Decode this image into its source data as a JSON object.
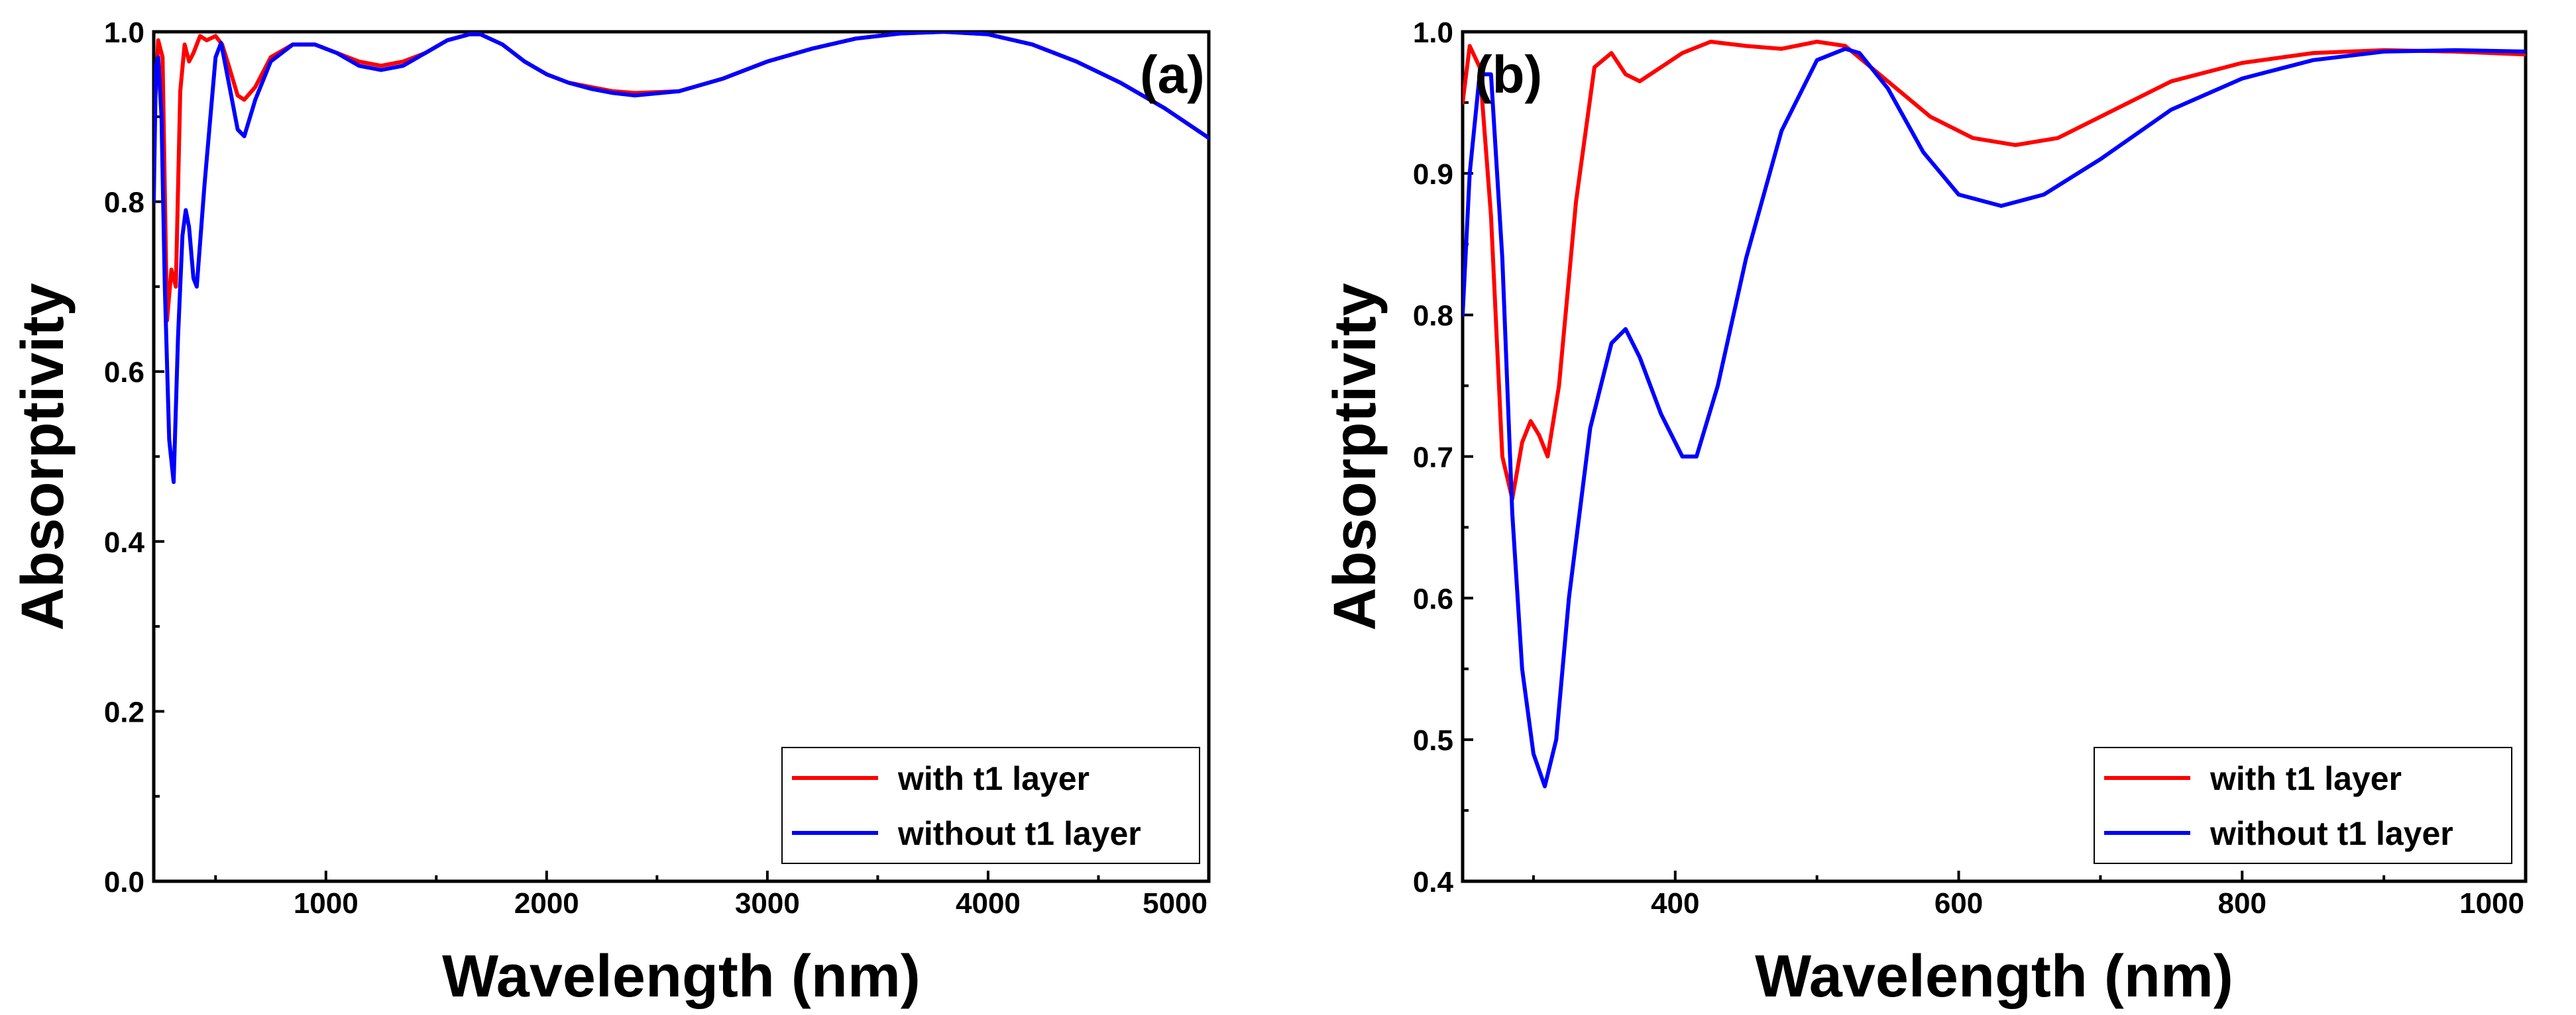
{
  "colors": {
    "with": "#ff0000",
    "without": "#0000ff"
  },
  "chart_data": [
    {
      "type": "line",
      "panel_label": "(a)",
      "xlabel": "Wavelength (nm)",
      "ylabel": "Absorptivity",
      "xlim": [
        220,
        5000
      ],
      "ylim": [
        0.0,
        1.0
      ],
      "xticks": [
        1000,
        2000,
        3000,
        4000,
        5000
      ],
      "xtick_labels": [
        "1000",
        "2000",
        "3000",
        "4000",
        "5000"
      ],
      "yticks": [
        0.0,
        0.2,
        0.4,
        0.6,
        0.8,
        1.0
      ],
      "ytick_labels": [
        "0.0",
        "0.2",
        "0.4",
        "0.6",
        "0.8",
        "1.0"
      ],
      "legend": [
        "with t1 layer",
        "without t1 layer"
      ],
      "legend_position": "bottom-right",
      "series": [
        {
          "name": "with t1 layer",
          "color": "#ff0000",
          "x": [
            220,
            240,
            260,
            280,
            300,
            320,
            340,
            360,
            380,
            400,
            430,
            460,
            500,
            530,
            560,
            600,
            630,
            680,
            750,
            850,
            950,
            1050,
            1150,
            1250,
            1350,
            1450,
            1550,
            1650,
            1700,
            1800,
            1900,
            2000,
            2100,
            2200,
            2300,
            2400,
            2600,
            2800,
            3000,
            3200,
            3400,
            3600,
            3800,
            4000,
            4200,
            4400,
            4600,
            4800,
            5000
          ],
          "y": [
            0.88,
            0.99,
            0.97,
            0.66,
            0.72,
            0.7,
            0.93,
            0.985,
            0.965,
            0.975,
            0.995,
            0.99,
            0.995,
            0.985,
            0.96,
            0.925,
            0.92,
            0.935,
            0.97,
            0.985,
            0.985,
            0.975,
            0.965,
            0.96,
            0.965,
            0.975,
            0.99,
            0.997,
            0.997,
            0.985,
            0.965,
            0.95,
            0.94,
            0.935,
            0.93,
            0.928,
            0.93,
            0.945,
            0.965,
            0.98,
            0.992,
            0.998,
            1.0,
            0.997,
            0.985,
            0.965,
            0.94,
            0.91,
            0.875
          ]
        },
        {
          "name": "without t1 layer",
          "color": "#0000ff",
          "x": [
            220,
            230,
            240,
            255,
            270,
            290,
            310,
            330,
            350,
            365,
            380,
            400,
            415,
            450,
            500,
            525,
            560,
            600,
            630,
            680,
            750,
            850,
            950,
            1050,
            1150,
            1250,
            1350,
            1450,
            1550,
            1650,
            1700,
            1800,
            1900,
            2000,
            2100,
            2200,
            2300,
            2400,
            2600,
            2800,
            3000,
            3200,
            3400,
            3600,
            3800,
            4000,
            4200,
            4400,
            4600,
            4800,
            5000
          ],
          "y": [
            0.8,
            0.96,
            0.97,
            0.9,
            0.7,
            0.52,
            0.47,
            0.64,
            0.76,
            0.79,
            0.77,
            0.71,
            0.7,
            0.82,
            0.97,
            0.987,
            0.94,
            0.885,
            0.877,
            0.92,
            0.965,
            0.985,
            0.985,
            0.975,
            0.96,
            0.955,
            0.96,
            0.975,
            0.99,
            0.997,
            0.997,
            0.985,
            0.965,
            0.95,
            0.94,
            0.933,
            0.928,
            0.925,
            0.93,
            0.945,
            0.965,
            0.98,
            0.992,
            0.998,
            1.0,
            0.997,
            0.985,
            0.965,
            0.94,
            0.91,
            0.875
          ]
        }
      ]
    },
    {
      "type": "line",
      "panel_label": "(b)",
      "xlabel": "Wavelength (nm)",
      "ylabel": "Absorptivity",
      "xlim": [
        250,
        1000
      ],
      "ylim": [
        0.4,
        1.0
      ],
      "xticks": [
        400,
        600,
        800,
        1000
      ],
      "xtick_labels": [
        "400",
        "600",
        "800",
        "1000"
      ],
      "yticks": [
        0.4,
        0.5,
        0.6,
        0.7,
        0.8,
        0.9,
        1.0
      ],
      "ytick_labels": [
        "0.4",
        "0.5",
        "0.6",
        "0.7",
        "0.8",
        "0.9",
        "1.0"
      ],
      "legend": [
        "with t1 layer",
        "without t1 layer"
      ],
      "legend_position": "bottom-right",
      "series": [
        {
          "name": "with t1 layer",
          "color": "#ff0000",
          "x": [
            250,
            255,
            262,
            270,
            278,
            285,
            292,
            298,
            304,
            310,
            318,
            330,
            343,
            355,
            365,
            375,
            390,
            405,
            425,
            450,
            475,
            500,
            520,
            550,
            580,
            610,
            640,
            670,
            700,
            750,
            800,
            850,
            900,
            950,
            1000
          ],
          "y": [
            0.95,
            0.99,
            0.975,
            0.87,
            0.7,
            0.67,
            0.71,
            0.725,
            0.715,
            0.7,
            0.75,
            0.88,
            0.975,
            0.985,
            0.97,
            0.965,
            0.975,
            0.985,
            0.993,
            0.99,
            0.988,
            0.993,
            0.99,
            0.965,
            0.94,
            0.925,
            0.92,
            0.925,
            0.94,
            0.965,
            0.978,
            0.985,
            0.987,
            0.986,
            0.984
          ]
        },
        {
          "name": "without t1 layer",
          "color": "#0000ff",
          "x": [
            250,
            255,
            262,
            270,
            278,
            285,
            292,
            300,
            308,
            316,
            325,
            340,
            355,
            365,
            375,
            390,
            405,
            415,
            430,
            450,
            475,
            500,
            520,
            530,
            550,
            575,
            600,
            630,
            660,
            700,
            750,
            800,
            850,
            900,
            950,
            1000
          ],
          "y": [
            0.8,
            0.9,
            0.97,
            0.97,
            0.84,
            0.66,
            0.55,
            0.49,
            0.467,
            0.5,
            0.6,
            0.72,
            0.78,
            0.79,
            0.77,
            0.73,
            0.7,
            0.7,
            0.75,
            0.84,
            0.93,
            0.98,
            0.988,
            0.985,
            0.96,
            0.915,
            0.885,
            0.877,
            0.885,
            0.91,
            0.945,
            0.967,
            0.98,
            0.986,
            0.987,
            0.986
          ]
        }
      ]
    }
  ]
}
